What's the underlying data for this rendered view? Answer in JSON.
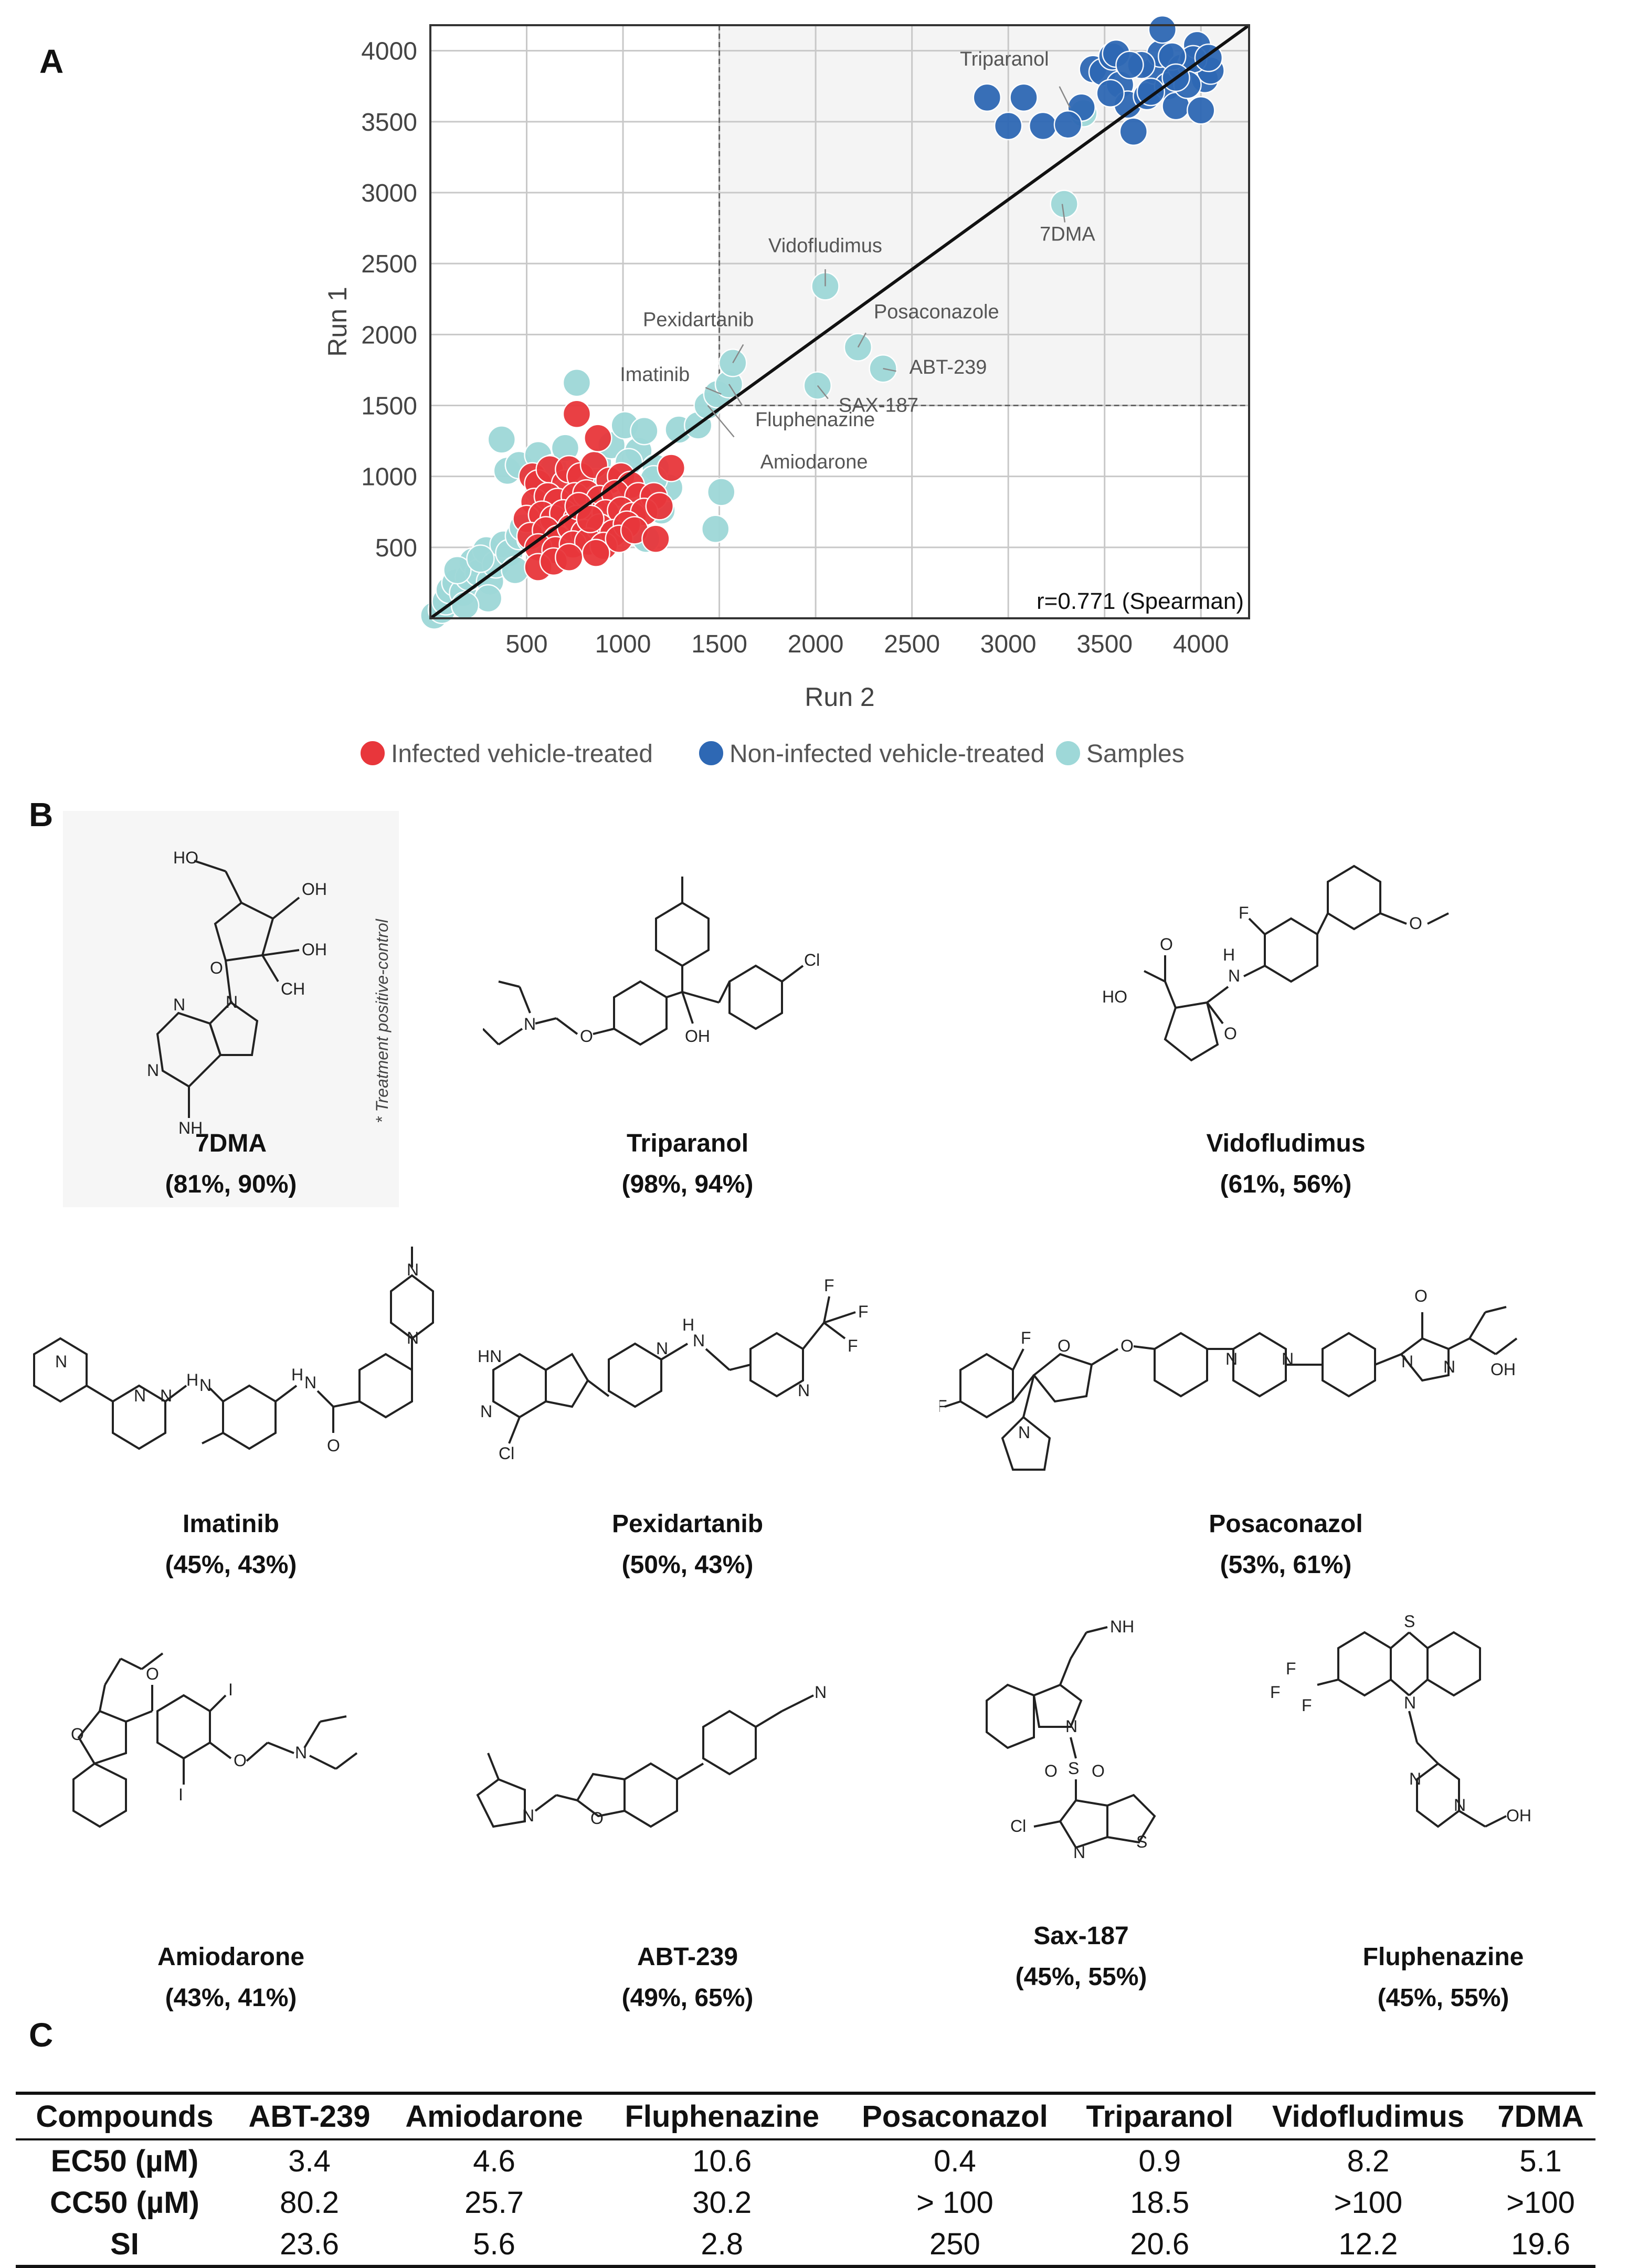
{
  "panels": {
    "a": "A",
    "b": "B",
    "c": "C"
  },
  "chart_data": {
    "type": "scatter",
    "title": "",
    "xlabel": "Run 2",
    "ylabel": "Run 1",
    "xlim": [
      0,
      4250
    ],
    "ylim": [
      0,
      4180
    ],
    "xticks": [
      500,
      1000,
      1500,
      2000,
      2500,
      3000,
      3500,
      4000
    ],
    "yticks": [
      500,
      1000,
      1500,
      2000,
      2500,
      3000,
      3500,
      4000
    ],
    "grid": true,
    "threshold_x": 1500,
    "threshold_y": 1500,
    "annotation": "r=0.771 (Spearman)",
    "fit_line": [
      [
        0,
        0
      ],
      [
        4250,
        4180
      ]
    ],
    "legend_position": "bottom",
    "series": [
      {
        "name": "Infected vehicle-treated",
        "color": "#e8363b",
        "points": [
          [
            530,
            1000
          ],
          [
            560,
            950
          ],
          [
            620,
            1050
          ],
          [
            700,
            950
          ],
          [
            720,
            1050
          ],
          [
            780,
            1000
          ],
          [
            850,
            1080
          ],
          [
            930,
            970
          ],
          [
            990,
            1000
          ],
          [
            1040,
            940
          ],
          [
            540,
            820
          ],
          [
            610,
            860
          ],
          [
            660,
            820
          ],
          [
            750,
            860
          ],
          [
            810,
            880
          ],
          [
            880,
            840
          ],
          [
            960,
            880
          ],
          [
            1080,
            860
          ],
          [
            1160,
            860
          ],
          [
            500,
            700
          ],
          [
            580,
            730
          ],
          [
            640,
            700
          ],
          [
            690,
            740
          ],
          [
            760,
            700
          ],
          [
            830,
            720
          ],
          [
            910,
            740
          ],
          [
            990,
            760
          ],
          [
            1050,
            720
          ],
          [
            1110,
            750
          ],
          [
            1190,
            790
          ],
          [
            520,
            580
          ],
          [
            600,
            620
          ],
          [
            660,
            560
          ],
          [
            730,
            640
          ],
          [
            800,
            600
          ],
          [
            880,
            640
          ],
          [
            950,
            600
          ],
          [
            1020,
            660
          ],
          [
            560,
            500
          ],
          [
            650,
            480
          ],
          [
            740,
            520
          ],
          [
            820,
            540
          ],
          [
            900,
            510
          ],
          [
            980,
            560
          ],
          [
            1060,
            620
          ],
          [
            1170,
            560
          ],
          [
            560,
            360
          ],
          [
            640,
            400
          ],
          [
            720,
            430
          ],
          [
            860,
            460
          ],
          [
            760,
            1440
          ],
          [
            870,
            1270
          ],
          [
            1250,
            1060
          ],
          [
            770,
            790
          ],
          [
            830,
            700
          ]
        ]
      },
      {
        "name": "Non-infected vehicle-treated",
        "color": "#2e68b4",
        "points": [
          [
            2890,
            3670
          ],
          [
            3080,
            3670
          ],
          [
            3180,
            3470
          ],
          [
            3380,
            3600
          ],
          [
            3440,
            3870
          ],
          [
            3490,
            3850
          ],
          [
            3540,
            3960
          ],
          [
            3580,
            3760
          ],
          [
            3620,
            3620
          ],
          [
            3650,
            3430
          ],
          [
            3720,
            3680
          ],
          [
            3760,
            3860
          ],
          [
            3790,
            3980
          ],
          [
            3830,
            3750
          ],
          [
            3870,
            3610
          ],
          [
            3900,
            3880
          ],
          [
            3950,
            3900
          ],
          [
            3980,
            4040
          ],
          [
            4020,
            3800
          ],
          [
            4050,
            3860
          ],
          [
            3960,
            3940
          ],
          [
            3850,
            3960
          ],
          [
            3800,
            4150
          ],
          [
            3740,
            3710
          ],
          [
            3690,
            3900
          ],
          [
            3930,
            3760
          ],
          [
            4000,
            3580
          ],
          [
            3560,
            3980
          ],
          [
            3000,
            3470
          ],
          [
            3630,
            3900
          ],
          [
            3530,
            3700
          ],
          [
            3310,
            3480
          ],
          [
            3870,
            3810
          ],
          [
            4040,
            3950
          ]
        ]
      },
      {
        "name": "Samples",
        "color": "#9ed8d8",
        "points": [
          [
            20,
            20
          ],
          [
            60,
            60
          ],
          [
            80,
            120
          ],
          [
            100,
            200
          ],
          [
            130,
            250
          ],
          [
            170,
            180
          ],
          [
            200,
            290
          ],
          [
            220,
            400
          ],
          [
            250,
            320
          ],
          [
            290,
            480
          ],
          [
            310,
            260
          ],
          [
            340,
            380
          ],
          [
            380,
            520
          ],
          [
            410,
            460
          ],
          [
            440,
            340
          ],
          [
            460,
            580
          ],
          [
            480,
            640
          ],
          [
            520,
            560
          ],
          [
            400,
            1040
          ],
          [
            370,
            1260
          ],
          [
            460,
            1080
          ],
          [
            560,
            1150
          ],
          [
            640,
            1060
          ],
          [
            700,
            1200
          ],
          [
            760,
            1660
          ],
          [
            870,
            1100
          ],
          [
            940,
            1220
          ],
          [
            1010,
            1360
          ],
          [
            1080,
            1180
          ],
          [
            1110,
            1320
          ],
          [
            1170,
            1060
          ],
          [
            1200,
            760
          ],
          [
            1240,
            920
          ],
          [
            1160,
            980
          ],
          [
            1290,
            1330
          ],
          [
            1390,
            1360
          ],
          [
            1440,
            1500
          ],
          [
            1490,
            1580
          ],
          [
            1550,
            1650
          ],
          [
            1570,
            1800
          ],
          [
            1510,
            890
          ],
          [
            1480,
            630
          ],
          [
            1030,
            1100
          ],
          [
            860,
            960
          ],
          [
            710,
            760
          ],
          [
            300,
            140
          ],
          [
            180,
            90
          ],
          [
            140,
            340
          ],
          [
            260,
            420
          ],
          [
            560,
            900
          ],
          [
            620,
            470
          ],
          [
            900,
            620
          ],
          [
            1120,
            560
          ],
          [
            1010,
            800
          ],
          [
            780,
            600
          ],
          [
            2050,
            2340
          ],
          [
            2220,
            1910
          ],
          [
            2350,
            1760
          ],
          [
            2010,
            1640
          ],
          [
            3290,
            2920
          ],
          [
            3390,
            3560
          ]
        ]
      }
    ],
    "labels": [
      {
        "text": "Triparanol",
        "x": 3320,
        "y": 3600
      },
      {
        "text": "7DMA",
        "x": 3280,
        "y": 2920
      },
      {
        "text": "Vidofludimus",
        "x": 2050,
        "y": 2340
      },
      {
        "text": "Pexidartanib",
        "x": 1570,
        "y": 1800
      },
      {
        "text": "Posaconazole",
        "x": 2220,
        "y": 1910
      },
      {
        "text": "Imatinib",
        "x": 1510,
        "y": 1580
      },
      {
        "text": "ABT-239",
        "x": 2350,
        "y": 1760
      },
      {
        "text": "SAX-187",
        "x": 2010,
        "y": 1640
      },
      {
        "text": "Fluphenazine",
        "x": 1550,
        "y": 1650
      },
      {
        "text": "Amiodarone",
        "x": 1440,
        "y": 1500
      }
    ]
  },
  "compounds": [
    {
      "name": "7DMA",
      "pct": "(81%, 90%)"
    },
    {
      "name": "Triparanol",
      "pct": "(98%, 94%)"
    },
    {
      "name": "Vidofludimus",
      "pct": "(61%, 56%)"
    },
    {
      "name": "Imatinib",
      "pct": "(45%, 43%)"
    },
    {
      "name": "Pexidartanib",
      "pct": "(50%, 43%)"
    },
    {
      "name": "Posaconazol",
      "pct": "(53%, 61%)"
    },
    {
      "name": "Amiodarone",
      "pct": "(43%, 41%)"
    },
    {
      "name": "ABT-239",
      "pct": "(49%, 65%)"
    },
    {
      "name": "Sax-187",
      "pct": "(45%, 55%)"
    },
    {
      "name": "Fluphenazine",
      "pct": "(45%, 55%)"
    }
  ],
  "note": "* Treatment positive-control",
  "table": {
    "headers": [
      "Compounds",
      "ABT-239",
      "Amiodarone",
      "Fluphenazine",
      "Posaconazol",
      "Triparanol",
      "Vidofludimus",
      "7DMA"
    ],
    "rows": [
      [
        "EC50 (µM)",
        "3.4",
        "4.6",
        "10.6",
        "0.4",
        "0.9",
        "8.2",
        "5.1"
      ],
      [
        "CC50 (µM)",
        "80.2",
        "25.7",
        "30.2",
        "> 100",
        "18.5",
        ">100",
        ">100"
      ],
      [
        "SI",
        "23.6",
        "5.6",
        "2.8",
        "250",
        "20.6",
        "12.2",
        "19.6"
      ]
    ]
  }
}
